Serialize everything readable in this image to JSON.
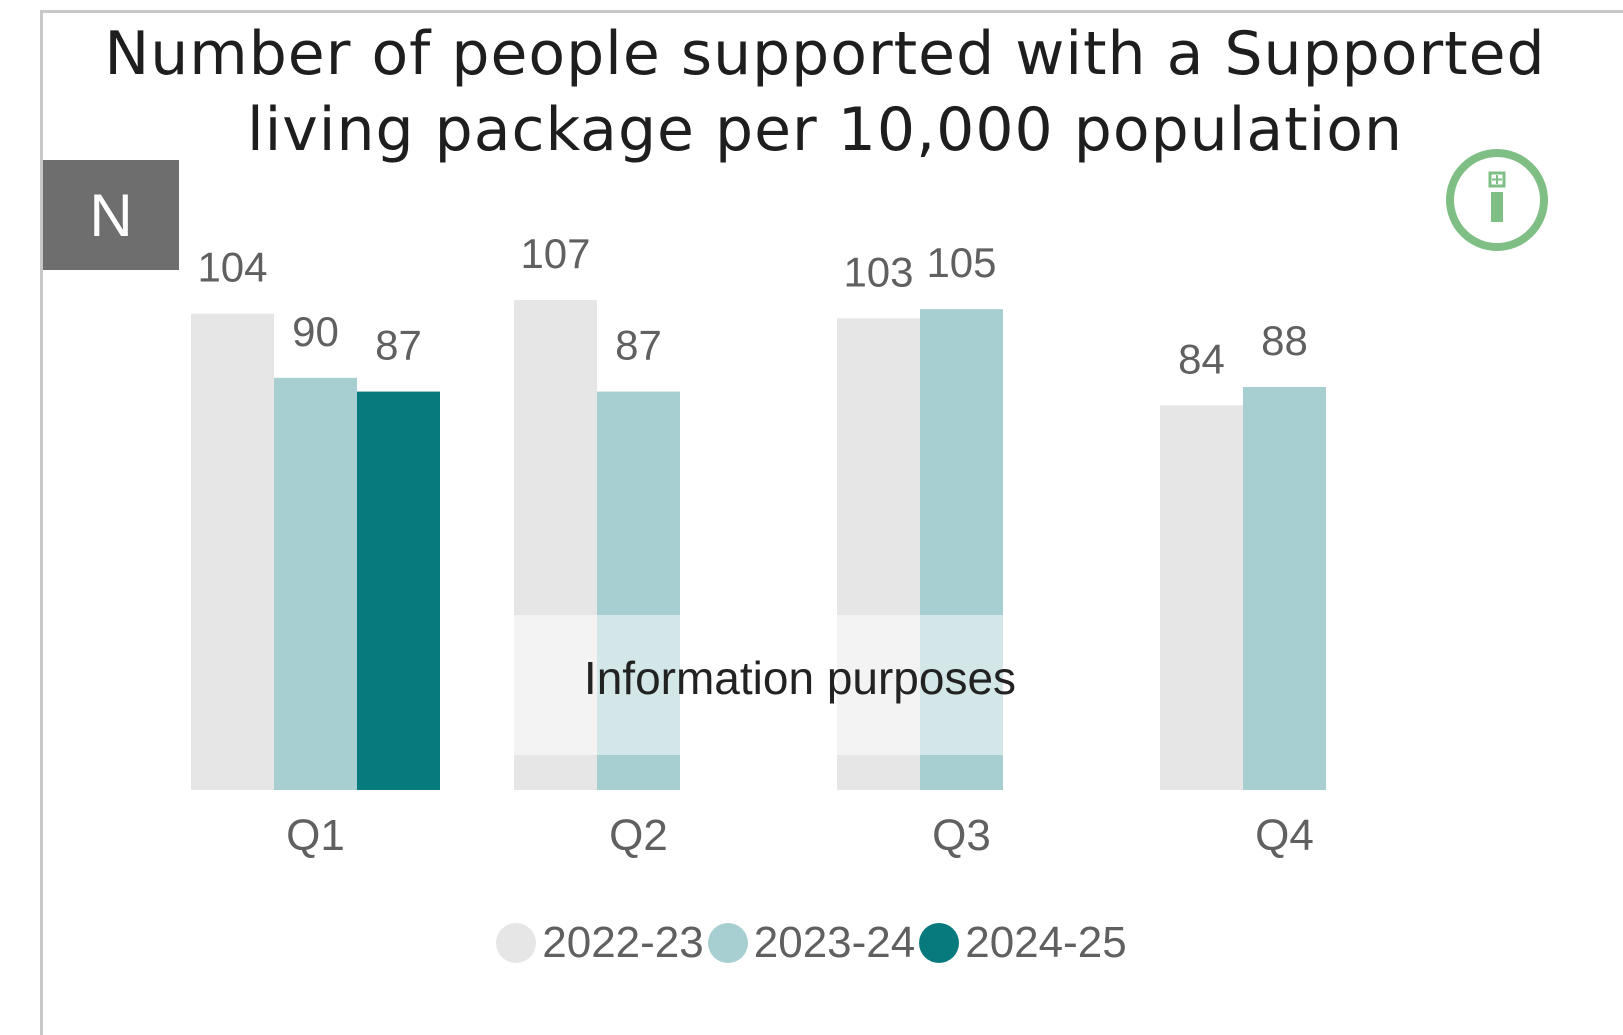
{
  "title": "Number of people supported with a Supported living package per 10,000 population",
  "badge": "N",
  "watermark": "Information purposes",
  "info_icon": "info-icon",
  "colors": {
    "series_2022_23": "#e6e6e6",
    "series_2023_24": "#a7cfd2",
    "series_2024_25": "#077a7e",
    "info_green": "#7fbf85",
    "badge_bg": "#6e6e6e",
    "label_text": "#606060"
  },
  "chart_data": {
    "type": "bar",
    "title": "Number of people supported with a Supported living package per 10,000 population",
    "categories": [
      "Q1",
      "Q2",
      "Q3",
      "Q4"
    ],
    "series": [
      {
        "name": "2022-23",
        "values": [
          104,
          107,
          103,
          84
        ]
      },
      {
        "name": "2023-24",
        "values": [
          90,
          87,
          105,
          88
        ]
      },
      {
        "name": "2024-25",
        "values": [
          87,
          null,
          null,
          null
        ]
      }
    ],
    "xlabel": "",
    "ylabel": "",
    "ylim": [
      0,
      107
    ],
    "data_labels": true,
    "grid": false,
    "legend_position": "bottom"
  }
}
